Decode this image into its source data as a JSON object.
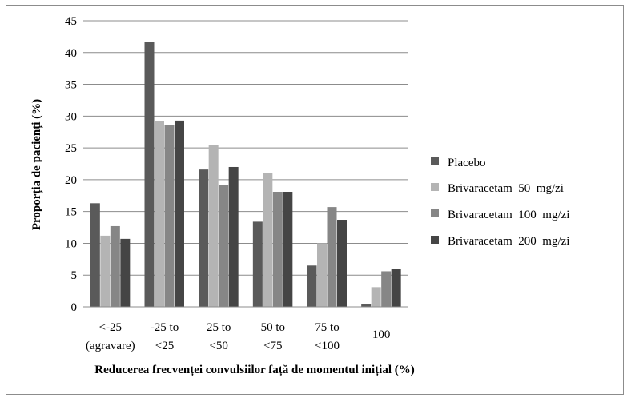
{
  "chart_data": {
    "type": "bar",
    "title": "",
    "xlabel": "Reducerea  frecvenței convulsiilor față de momentul inițial (%)",
    "ylabel": "Proporția  de  pacienți  (%)",
    "ylim": [
      0,
      45
    ],
    "y_ticks": [
      0,
      5,
      10,
      15,
      20,
      25,
      30,
      35,
      40,
      45
    ],
    "grid": "horizontal",
    "legend_position": "right",
    "categories": [
      [
        "<-25",
        "(agravare)"
      ],
      [
        "-25 to",
        "<25"
      ],
      [
        "25 to",
        "<50"
      ],
      [
        "50 to",
        "<75"
      ],
      [
        "75 to",
        "<100"
      ],
      [
        "100"
      ]
    ],
    "series": [
      {
        "name": "Placebo",
        "color": "#5a5a5a",
        "values": [
          16.3,
          41.7,
          21.6,
          13.4,
          6.5,
          0.5
        ]
      },
      {
        "name": "Brivaracetam  50  mg/zi",
        "color": "#b4b4b4",
        "values": [
          11.2,
          29.2,
          25.4,
          21.0,
          10.0,
          3.1
        ]
      },
      {
        "name": "Brivaracetam  100  mg/zi",
        "color": "#868686",
        "values": [
          12.7,
          28.6,
          19.2,
          18.1,
          15.7,
          5.6
        ]
      },
      {
        "name": "Brivaracetam  200  mg/zi",
        "color": "#454545",
        "values": [
          10.7,
          29.3,
          22.0,
          18.1,
          13.7,
          6.0
        ]
      }
    ]
  }
}
